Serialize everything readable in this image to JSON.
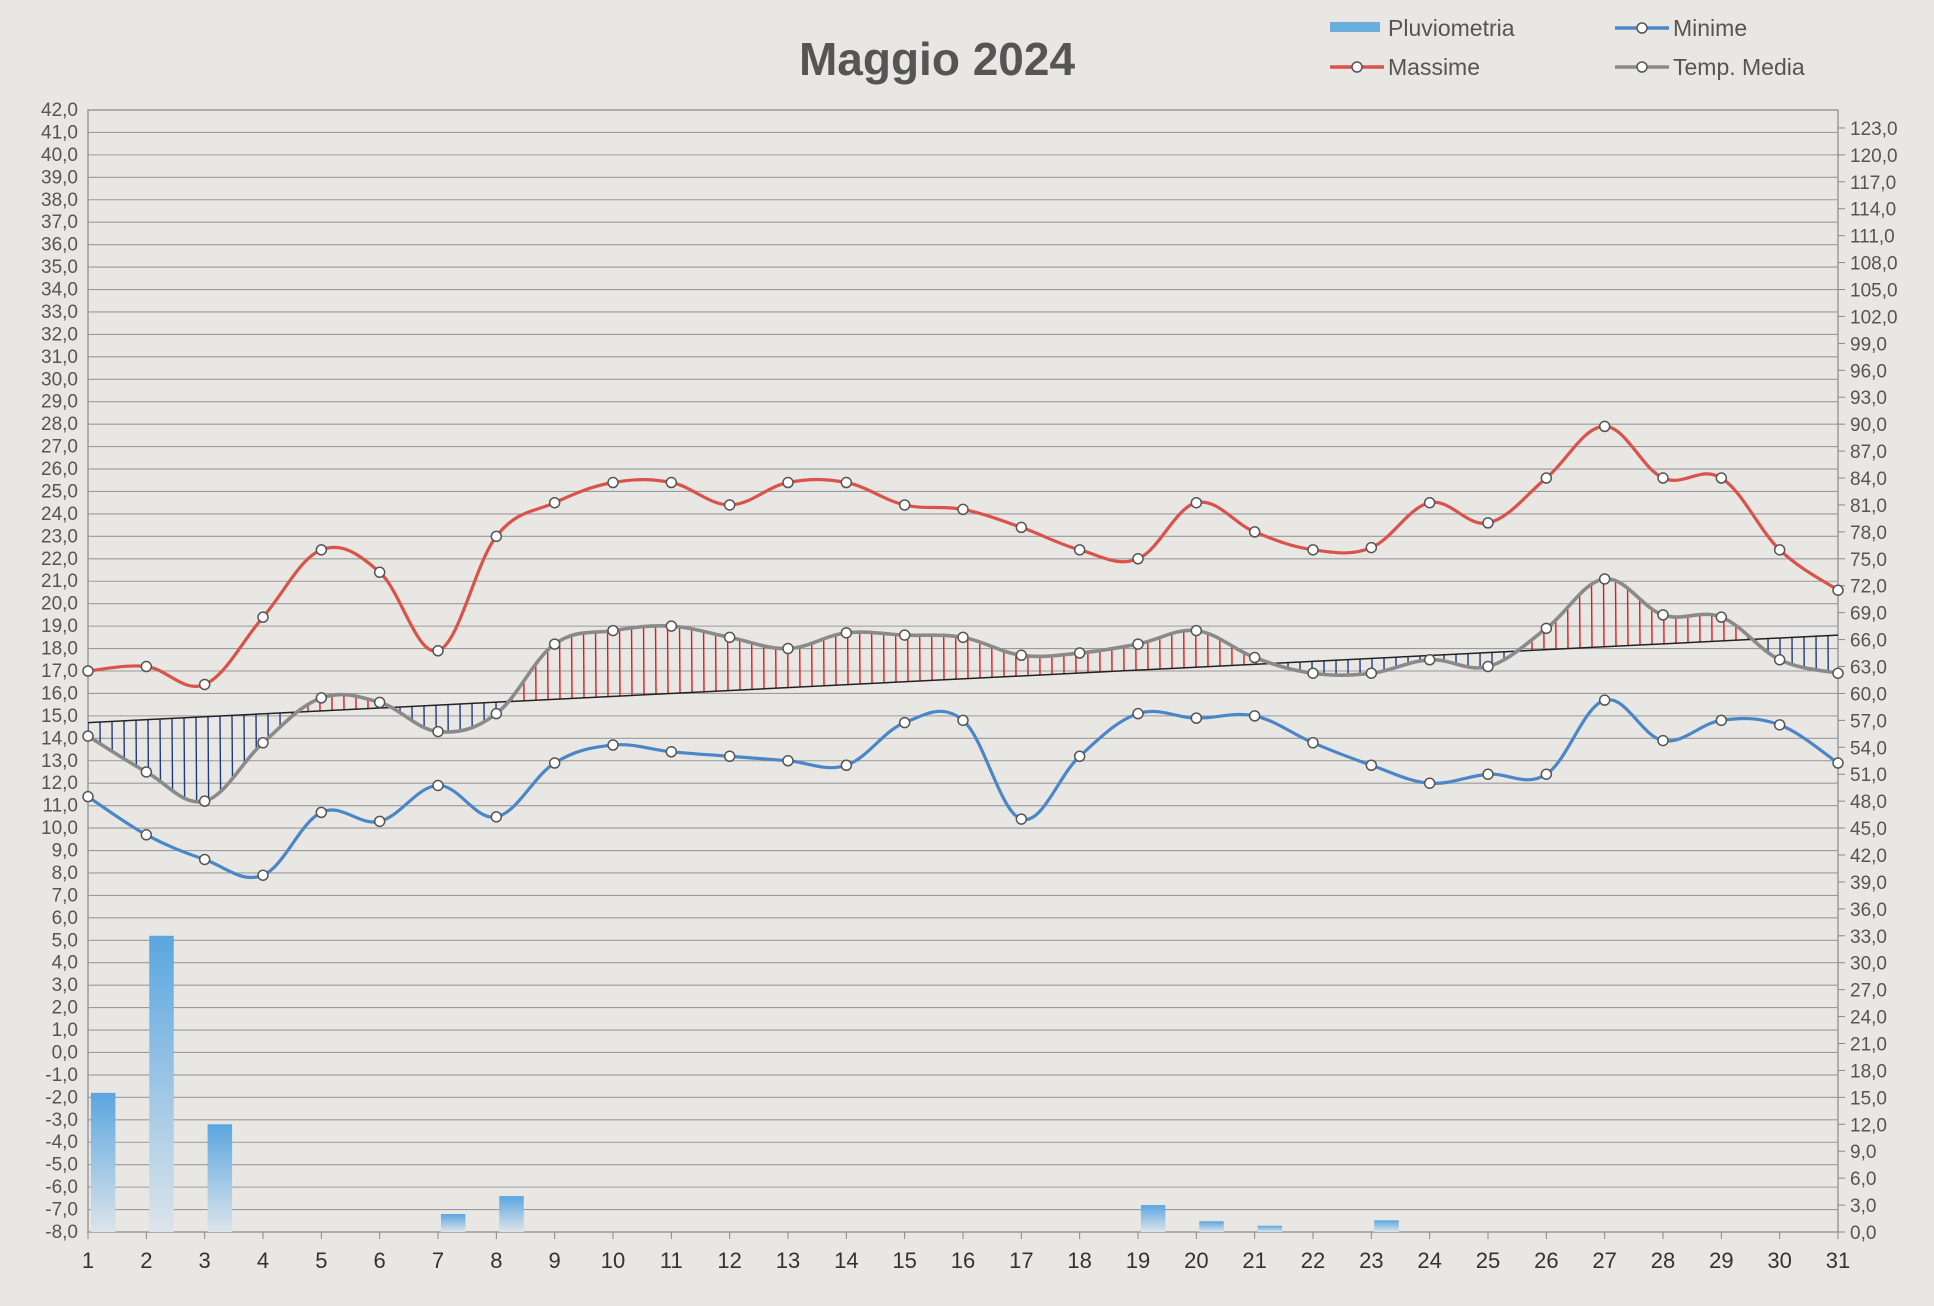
{
  "chart_data": {
    "type": "line",
    "title": "Maggio 2024",
    "x": [
      1,
      2,
      3,
      4,
      5,
      6,
      7,
      8,
      9,
      10,
      11,
      12,
      13,
      14,
      15,
      16,
      17,
      18,
      19,
      20,
      21,
      22,
      23,
      24,
      25,
      26,
      27,
      28,
      29,
      30,
      31
    ],
    "xlim": [
      1,
      31
    ],
    "ylim": [
      -8,
      42
    ],
    "y_ticks": [
      "42,0",
      "41,0",
      "40,0",
      "39,0",
      "38,0",
      "37,0",
      "36,0",
      "35,0",
      "34,0",
      "33,0",
      "32,0",
      "31,0",
      "30,0",
      "29,0",
      "28,0",
      "27,0",
      "26,0",
      "25,0",
      "24,0",
      "23,0",
      "22,0",
      "21,0",
      "20,0",
      "19,0",
      "18,0",
      "17,0",
      "16,0",
      "15,0",
      "14,0",
      "13,0",
      "12,0",
      "11,0",
      "10,0",
      "9,0",
      "8,0",
      "7,0",
      "6,0",
      "5,0",
      "4,0",
      "3,0",
      "2,0",
      "1,0",
      "0,0",
      "-1,0",
      "-2,0",
      "-3,0",
      "-4,0",
      "-5,0",
      "-6,0",
      "-7,0",
      "-8,0"
    ],
    "y2lim": [
      0,
      125
    ],
    "y2_ticks": [
      "123,0",
      "120,0",
      "117,0",
      "114,0",
      "111,0",
      "108,0",
      "105,0",
      "102,0",
      "99,0",
      "96,0",
      "93,0",
      "90,0",
      "87,0",
      "84,0",
      "81,0",
      "78,0",
      "75,0",
      "72,0",
      "69,0",
      "66,0",
      "63,0",
      "60,0",
      "57,0",
      "54,0",
      "51,0",
      "48,0",
      "45,0",
      "42,0",
      "39,0",
      "36,0",
      "33,0",
      "30,0",
      "27,0",
      "24,0",
      "21,0",
      "18,0",
      "15,0",
      "12,0",
      "9,0",
      "6,0",
      "3,0",
      "0,0"
    ],
    "grid": true,
    "legend_position": "top-right",
    "colors": {
      "max": "#d9534a",
      "min": "#4a86c8",
      "media": "#8a8a8a",
      "rain": "#6aaee0",
      "trend": "#222222",
      "hatch_above": "#d62020",
      "hatch_below": "#1f3d7a"
    },
    "series": [
      {
        "name": "Pluviometria",
        "type": "bar",
        "axis": "right",
        "values": [
          15.5,
          33.0,
          12.0,
          0,
          0,
          0,
          2.0,
          4.0,
          0,
          0,
          0,
          0,
          0,
          0,
          0,
          0,
          0,
          0,
          3.0,
          1.2,
          0.7,
          0,
          1.3,
          0,
          0,
          0,
          0,
          0,
          0,
          0,
          0
        ]
      },
      {
        "name": "Minime",
        "type": "line",
        "axis": "left",
        "values": [
          11.4,
          9.7,
          8.6,
          7.9,
          10.7,
          10.3,
          11.9,
          10.5,
          12.9,
          13.7,
          13.4,
          13.2,
          13.0,
          12.8,
          14.7,
          14.8,
          10.4,
          13.2,
          15.1,
          14.9,
          15.0,
          13.8,
          12.8,
          12.0,
          12.4,
          12.4,
          15.7,
          13.9,
          14.8,
          14.6,
          12.9
        ]
      },
      {
        "name": "Massime",
        "type": "line",
        "axis": "left",
        "values": [
          17.0,
          17.2,
          16.4,
          19.4,
          22.4,
          21.4,
          17.9,
          23.0,
          24.5,
          25.4,
          25.4,
          24.4,
          25.4,
          25.4,
          24.4,
          24.2,
          23.4,
          22.4,
          22.0,
          24.5,
          23.2,
          22.4,
          22.5,
          24.5,
          23.6,
          25.6,
          27.9,
          25.6,
          25.6,
          22.4,
          20.6
        ]
      },
      {
        "name": "Temp. Media",
        "type": "line",
        "axis": "left",
        "values": [
          14.1,
          12.5,
          11.2,
          13.8,
          15.8,
          15.6,
          14.3,
          15.1,
          18.2,
          18.8,
          19.0,
          18.5,
          18.0,
          18.7,
          18.6,
          18.5,
          17.7,
          17.8,
          18.2,
          18.8,
          17.6,
          16.9,
          16.9,
          17.5,
          17.2,
          18.9,
          21.1,
          19.5,
          19.4,
          17.5,
          16.9
        ]
      }
    ],
    "trendline": {
      "start": 14.7,
      "end": 18.6
    }
  }
}
